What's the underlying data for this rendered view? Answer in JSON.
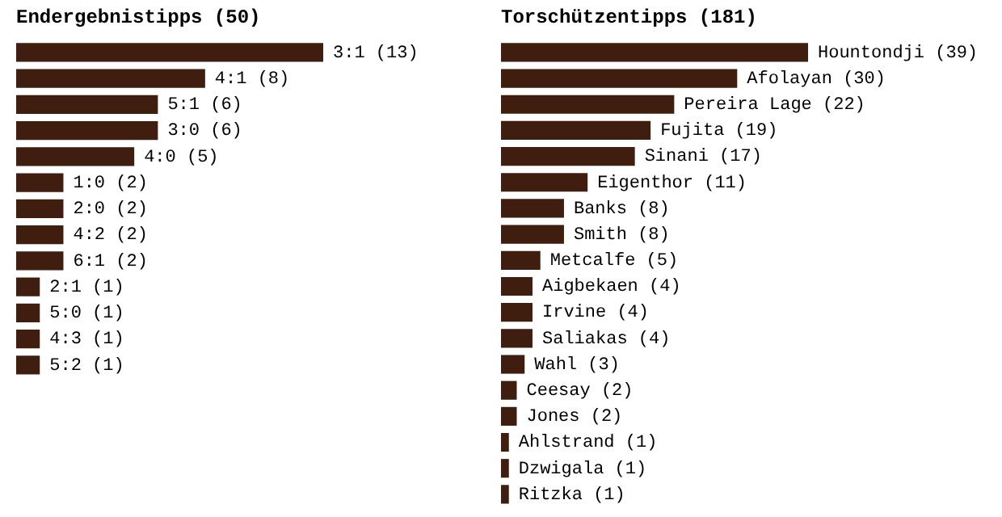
{
  "chart_data": [
    {
      "type": "bar",
      "orientation": "horizontal",
      "title": "Endergebnistipps (50)",
      "categories": [
        null,
        null,
        null,
        null,
        null,
        null,
        null,
        null,
        null,
        null,
        null,
        null,
        null
      ],
      "values": [
        13,
        8,
        6,
        6,
        5,
        2,
        2,
        2,
        2,
        1,
        1,
        1,
        1
      ],
      "value_labels": [
        "3:1 (13)",
        "4:1 (8)",
        "5:1 (6)",
        "3:0 (6)",
        "4:0 (5)",
        "1:0 (2)",
        "2:0 (2)",
        "4:2 (2)",
        "6:1 (2)",
        "2:1 (1)",
        "5:0 (1)",
        "4:3 (1)",
        "5:2 (1)"
      ],
      "color": "#3f1d0f",
      "tick_labels": false,
      "legend": false
    },
    {
      "type": "bar",
      "orientation": "horizontal",
      "title": "Torschützentipps (181)",
      "categories": [
        null,
        null,
        null,
        null,
        null,
        null,
        null,
        null,
        null,
        null,
        null,
        null,
        null,
        null,
        null,
        null,
        null,
        null
      ],
      "values": [
        39,
        30,
        22,
        19,
        17,
        11,
        8,
        8,
        5,
        4,
        4,
        4,
        3,
        2,
        2,
        1,
        1,
        1
      ],
      "value_labels": [
        "Hountondji (39)",
        "Afolayan (30)",
        "Pereira Lage (22)",
        "Fujita (19)",
        "Sinani (17)",
        "Eigenthor (11)",
        "Banks (8)",
        "Smith (8)",
        "Metcalfe (5)",
        "Aigbekaen (4)",
        "Irvine (4)",
        "Saliakas (4)",
        "Wahl (3)",
        "Ceesay (2)",
        "Jones (2)",
        "Ahlstrand (1)",
        "Dzwigala (1)",
        "Ritzka (1)"
      ],
      "color": "#3f1d0f",
      "tick_labels": false,
      "legend": false
    }
  ]
}
